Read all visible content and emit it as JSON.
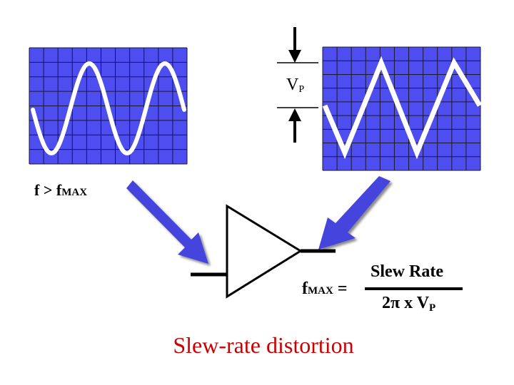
{
  "colors": {
    "screen_fill": "#4d4df0",
    "screen_grid": "#1a1a30",
    "trace": "#ffffff",
    "arrow_fill": "#4444dd",
    "caption": "#cc0000",
    "ink": "#000000"
  },
  "labels": {
    "freq_condition_main": "f > f",
    "freq_condition_sub": "MAX",
    "vp_main": "V",
    "vp_sub": "P",
    "fmax_main": "f",
    "fmax_sub": "MAX",
    "equals": "=",
    "numerator": "Slew Rate",
    "denominator_main": "2π x V",
    "denominator_sub": "P"
  },
  "caption": "Slew-rate distortion",
  "icons": {
    "left_screen": "oscilloscope-sine-icon",
    "right_screen": "oscilloscope-triangle-icon",
    "amplifier": "op-amp-triangle-icon"
  }
}
